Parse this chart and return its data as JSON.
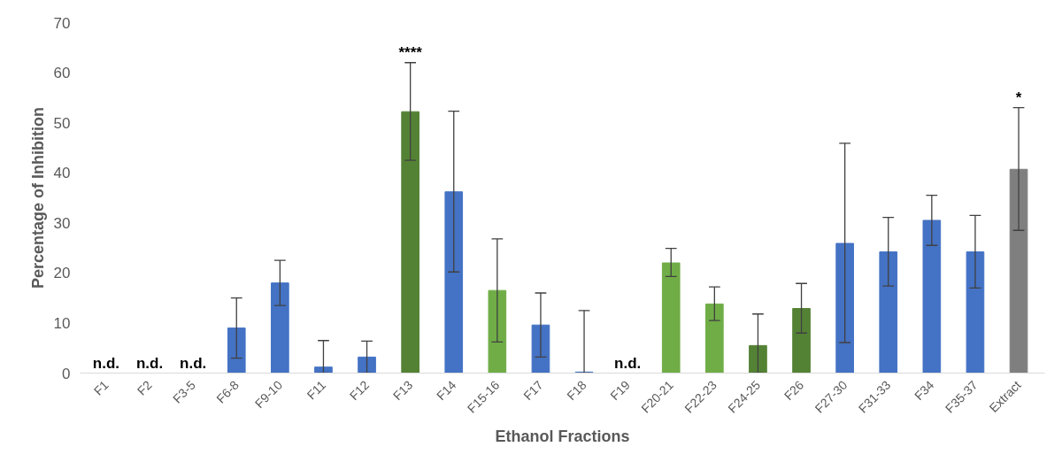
{
  "chart_data": {
    "type": "bar",
    "xlabel": "Ethanol Fractions",
    "ylabel": "Percentage of Inhibition",
    "categories": [
      "F1",
      "F2",
      "F3-5",
      "F6-8",
      "F9-10",
      "F11",
      "F12",
      "F13",
      "F14",
      "F15-16",
      "F17",
      "F18",
      "F19",
      "F20-21",
      "F22-23",
      "F24-25",
      "F26",
      "F27-30",
      "F31-33",
      "F34",
      "F35-37",
      "Extract"
    ],
    "values": [
      0,
      0,
      0,
      9.0,
      18.0,
      1.2,
      3.2,
      52.2,
      36.2,
      16.5,
      9.6,
      0.2,
      0,
      22.0,
      13.8,
      5.5,
      12.9,
      25.9,
      24.2,
      30.5,
      24.2,
      40.7
    ],
    "colors": [
      "#4472c4",
      "#4472c4",
      "#4472c4",
      "#4472c4",
      "#4472c4",
      "#4472c4",
      "#4472c4",
      "#548235",
      "#4472c4",
      "#70ad47",
      "#4472c4",
      "#4472c4",
      "#4472c4",
      "#70ad47",
      "#70ad47",
      "#548235",
      "#548235",
      "#4472c4",
      "#4472c4",
      "#4472c4",
      "#4472c4",
      "#7f7f7f"
    ],
    "errors": [
      null,
      null,
      null,
      [
        3.0,
        15.0
      ],
      [
        13.5,
        22.5
      ],
      [
        0,
        6.5
      ],
      [
        0,
        6.4
      ],
      [
        42.5,
        62.0
      ],
      [
        20.2,
        52.3
      ],
      [
        6.2,
        26.8
      ],
      [
        3.2,
        16.0
      ],
      [
        0,
        12.5
      ],
      null,
      [
        19.3,
        24.9
      ],
      [
        10.5,
        17.2
      ],
      [
        0,
        11.8
      ],
      [
        8.0,
        17.9
      ],
      [
        6.1,
        45.9
      ],
      [
        17.4,
        31.1
      ],
      [
        25.5,
        35.5
      ],
      [
        17.0,
        31.5
      ],
      [
        28.5,
        53.0
      ]
    ],
    "ylim": [
      0,
      70
    ],
    "yticks": [
      0,
      10,
      20,
      30,
      40,
      50,
      60,
      70
    ],
    "grid": false,
    "annotations": [
      {
        "text": "n.d.",
        "x": "F1",
        "y": 0
      },
      {
        "text": "n.d.",
        "x": "F2",
        "y": 0
      },
      {
        "text": "n.d.",
        "x": "F3-5",
        "y": 0
      },
      {
        "text": "n.d.",
        "x": "F19",
        "y": 0
      },
      {
        "text": "****",
        "x": "F13",
        "y": 62.0
      },
      {
        "text": "*",
        "x": "Extract",
        "y": 53.0
      }
    ]
  }
}
